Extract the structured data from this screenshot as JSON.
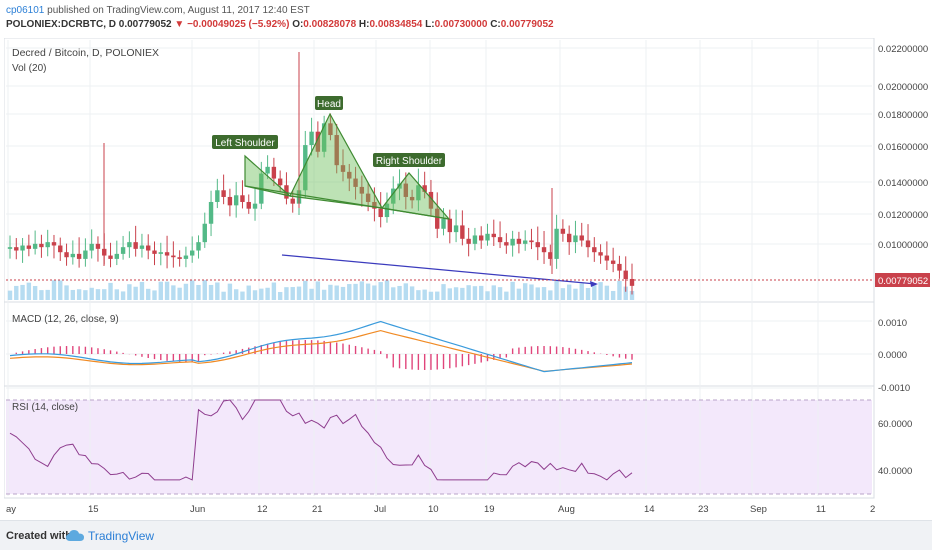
{
  "header": {
    "author": "cp06101",
    "published_text": "published on TradingView.com, August 11, 2017 12:40 EST",
    "symbol": "POLONIEX:DCRBTC, D",
    "last_price": "0.00779052",
    "change": "−0.00049025 (−5.92%)",
    "o_label": "O:",
    "o_value": "0.00828078",
    "h_label": "H:",
    "h_value": "0.00834854",
    "l_label": "L:",
    "l_value": "0.00730000",
    "c_label": "C:",
    "c_value": "0.00779052"
  },
  "main_pane": {
    "title": "Decred / Bitcoin, D, POLONIEX",
    "volume_label": "Vol (20)",
    "price_tag": "0.00779052",
    "y_ticks": [
      "0.02200000",
      "0.02000000",
      "0.01800000",
      "0.01600000",
      "0.01400000",
      "0.01200000",
      "0.01000000"
    ],
    "annotations": [
      "Left Shoulder",
      "Head",
      "Right Shoulder"
    ]
  },
  "macd_pane": {
    "title": "MACD (12, 26, close, 9)",
    "y_ticks": [
      "0.0010",
      "0.0000",
      "-0.0010"
    ]
  },
  "rsi_pane": {
    "title": "RSI (14, close)",
    "y_ticks": [
      "60.0000",
      "40.0000"
    ]
  },
  "x_ticks": [
    "ay",
    "15",
    "Jun",
    "12",
    "21",
    "Jul",
    "10",
    "19",
    "Aug",
    "14",
    "23",
    "Sep",
    "11",
    "2"
  ],
  "colors": {
    "up": "#53b987",
    "down": "#c9414b",
    "volume": "#a9d6ee",
    "macd": "#3a9bdc",
    "signal": "#f08a24",
    "histogram": "#e0457b",
    "rsi": "#8e3d8e",
    "rsi_band": "#f3e8fb",
    "pattern": "#6cbf5a",
    "trend": "#3b3bbd"
  },
  "footer": {
    "created_with": "Created with",
    "brand": "TradingView"
  },
  "chart_data": {
    "type": "candlestick",
    "title": "Decred / Bitcoin, D, POLONIEX",
    "x": [
      "ay",
      "15",
      "Jun",
      "12",
      "21",
      "Jul",
      "10",
      "19",
      "Aug",
      "14",
      "23",
      "Sep",
      "11",
      "2"
    ],
    "ylim": [
      0.0078,
      0.0222
    ],
    "last_close": 0.00779052,
    "macd_ylim": [
      -0.001,
      0.001
    ],
    "rsi_levels": [
      40,
      60
    ]
  }
}
